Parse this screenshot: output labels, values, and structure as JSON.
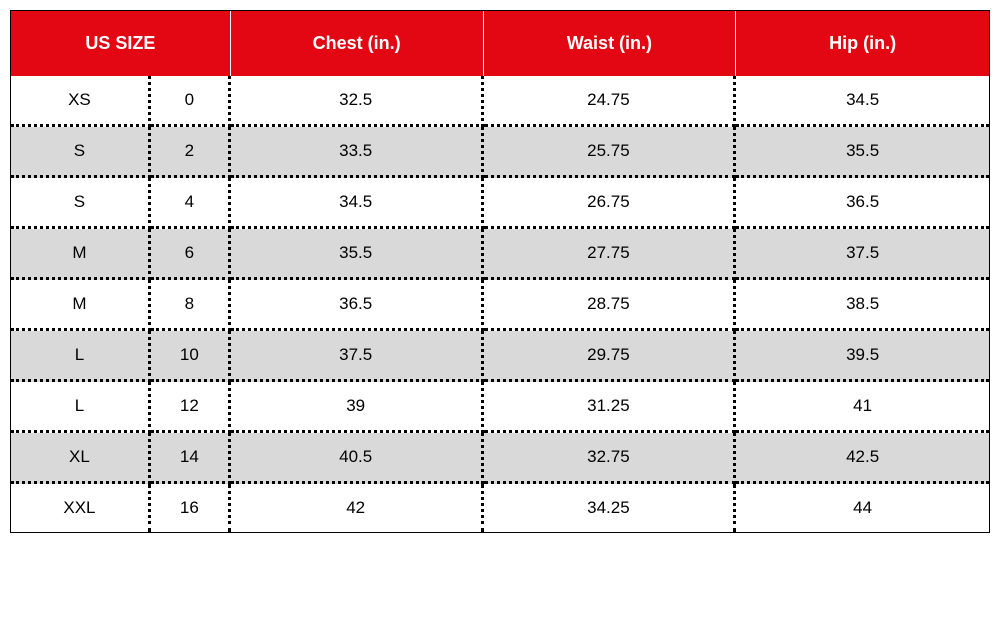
{
  "sizeChart": {
    "headers": {
      "usSize": "US SIZE",
      "chest": "Chest (in.)",
      "waist": "Waist (in.)",
      "hip": "Hip (in.)"
    },
    "rows": [
      {
        "sizeLabel": "XS",
        "sizeNum": "0",
        "chest": "32.5",
        "waist": "24.75",
        "hip": "34.5",
        "striped": false
      },
      {
        "sizeLabel": "S",
        "sizeNum": "2",
        "chest": "33.5",
        "waist": "25.75",
        "hip": "35.5",
        "striped": true
      },
      {
        "sizeLabel": "S",
        "sizeNum": "4",
        "chest": "34.5",
        "waist": "26.75",
        "hip": "36.5",
        "striped": false
      },
      {
        "sizeLabel": "M",
        "sizeNum": "6",
        "chest": "35.5",
        "waist": "27.75",
        "hip": "37.5",
        "striped": true
      },
      {
        "sizeLabel": "M",
        "sizeNum": "8",
        "chest": "36.5",
        "waist": "28.75",
        "hip": "38.5",
        "striped": false
      },
      {
        "sizeLabel": "L",
        "sizeNum": "10",
        "chest": "37.5",
        "waist": "29.75",
        "hip": "39.5",
        "striped": true
      },
      {
        "sizeLabel": "L",
        "sizeNum": "12",
        "chest": "39",
        "waist": "31.25",
        "hip": "41",
        "striped": false
      },
      {
        "sizeLabel": "XL",
        "sizeNum": "14",
        "chest": "40.5",
        "waist": "32.75",
        "hip": "42.5",
        "striped": true
      },
      {
        "sizeLabel": "XXL",
        "sizeNum": "16",
        "chest": "42",
        "waist": "34.25",
        "hip": "44",
        "striped": false
      }
    ],
    "styling": {
      "header_background_color": "#e30613",
      "header_text_color": "#ffffff",
      "header_fontsize": 18,
      "body_fontsize": 17,
      "body_text_color": "#000000",
      "row_alt_background": "#d9d9d9",
      "row_background": "#ffffff",
      "border_style": "dotted",
      "border_width": 3,
      "border_color": "#000000",
      "outer_border": "1px solid #000000",
      "header_row_divider_color": "#ffffff",
      "font_family": "Arial",
      "column_widths": {
        "sizeLabel": 140,
        "sizeNum": 80,
        "chest": 253,
        "waist": 253,
        "hip": 253
      },
      "cell_padding_vertical": 14,
      "header_padding_vertical": 22
    }
  }
}
